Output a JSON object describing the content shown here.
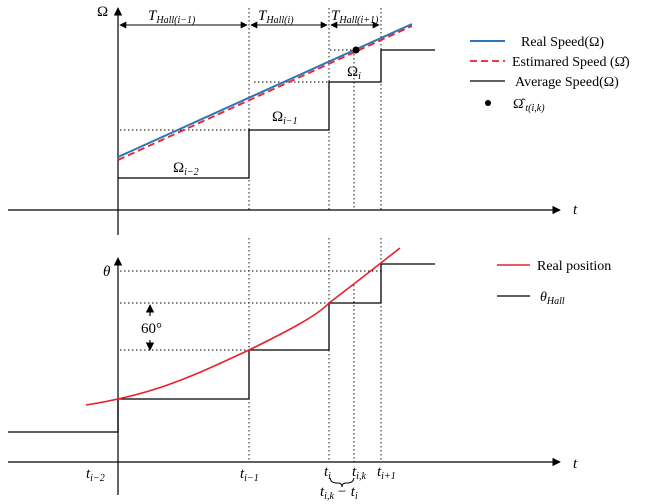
{
  "top_plot": {
    "y_axis_label": "Ω",
    "x_axis_label": "t",
    "periods": [
      {
        "main": "T",
        "sub": "Hall(i−1)"
      },
      {
        "main": "T",
        "sub": "Hall(i)"
      },
      {
        "main": "T",
        "sub": "Hall(i+1)"
      }
    ],
    "step_labels": [
      {
        "main": "Ω",
        "sub": "i−2"
      },
      {
        "main": "Ω",
        "sub": "i−1"
      },
      {
        "main": "Ω",
        "sub": "i"
      }
    ],
    "legend": [
      {
        "label": "Real Speed(Ω)",
        "color": "#2e75b6",
        "style": "solid"
      },
      {
        "label": "Estimared Speed (Ω̂)",
        "color": "#e8212a",
        "style": "dashed"
      },
      {
        "label": "Average Speed(Ω)",
        "color": "#000000",
        "style": "solid"
      },
      {
        "label": "Ω̂",
        "sub": "t(i,k)",
        "style": "dot"
      }
    ]
  },
  "bottom_plot": {
    "y_axis_label": "θ",
    "x_axis_label": "t",
    "angle_label": "60°",
    "legend": [
      {
        "label": "Real position",
        "color": "#e8212a"
      },
      {
        "label": "θ",
        "sub": "Hall",
        "color": "#000000"
      }
    ],
    "time_ticks": [
      {
        "main": "t",
        "sub": "i−2"
      },
      {
        "main": "t",
        "sub": "i−1"
      },
      {
        "main": "t",
        "sub": "i"
      },
      {
        "main": "t",
        "sub": "i,k"
      },
      {
        "main": "t",
        "sub": "i+1"
      }
    ],
    "interval_label": {
      "main": "t",
      "sub": "i,k",
      "tail": "− t",
      "tail_sub": "i"
    }
  }
}
